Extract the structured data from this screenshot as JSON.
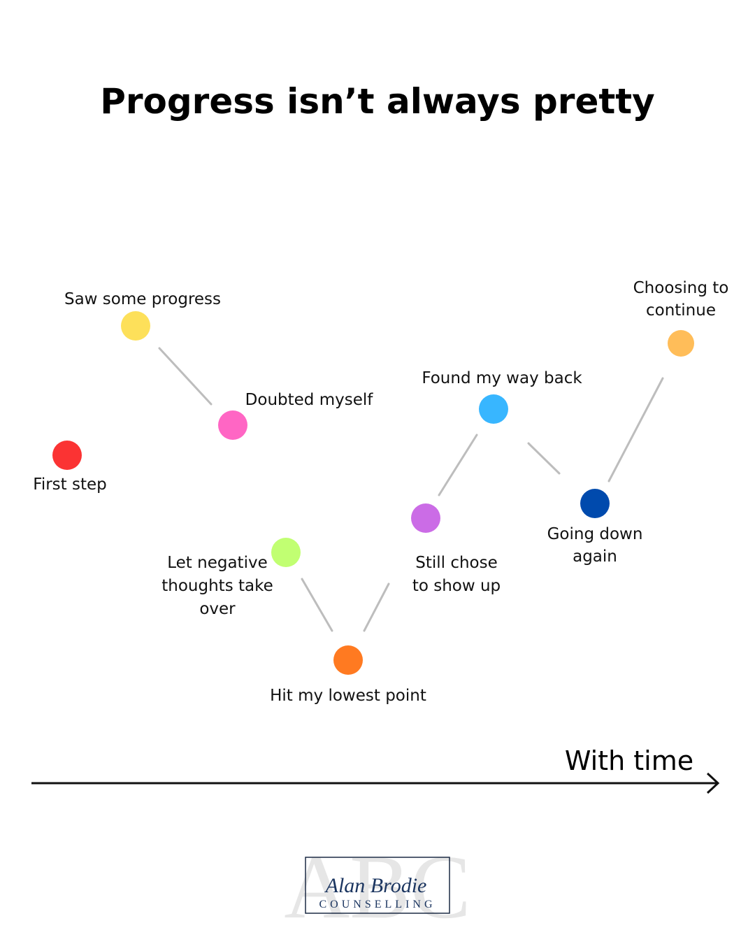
{
  "header": {
    "title": "Progress isn’t always pretty"
  },
  "nodes": [
    {
      "label": [
        "First step"
      ]
    },
    {
      "label": [
        "Saw some progress"
      ]
    },
    {
      "label": [
        "Doubted myself"
      ]
    },
    {
      "label": [
        "Let negative",
        "thoughts take",
        "over"
      ]
    },
    {
      "label": [
        "Hit my lowest point"
      ]
    },
    {
      "label": [
        "Still chose",
        "to show up"
      ]
    },
    {
      "label": [
        "Found my way back"
      ]
    },
    {
      "label": [
        "Going down",
        "again"
      ]
    },
    {
      "label": [
        "Choosing to",
        "continue"
      ]
    }
  ],
  "axis": {
    "label": "With time"
  },
  "logo": {
    "watermark": "ABC",
    "name": "Alan Brodie",
    "subtitle": "COUNSELLING"
  }
}
